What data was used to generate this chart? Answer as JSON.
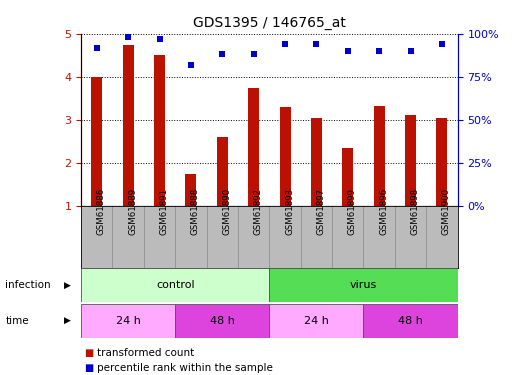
{
  "title": "GDS1395 / 146765_at",
  "samples": [
    "GSM61886",
    "GSM61889",
    "GSM61891",
    "GSM61888",
    "GSM61890",
    "GSM61892",
    "GSM61893",
    "GSM61897",
    "GSM61899",
    "GSM61896",
    "GSM61898",
    "GSM61900"
  ],
  "transformed_count": [
    4.0,
    4.75,
    4.5,
    1.75,
    2.6,
    3.75,
    3.3,
    3.05,
    2.35,
    3.32,
    3.12,
    3.05
  ],
  "percentile_rank": [
    92,
    98,
    97,
    82,
    88,
    88,
    94,
    94,
    90,
    90,
    90,
    94
  ],
  "bar_color": "#bb1100",
  "dot_color": "#0000cc",
  "ylim_left": [
    1,
    5
  ],
  "ylim_right": [
    0,
    100
  ],
  "yticks_left": [
    1,
    2,
    3,
    4,
    5
  ],
  "yticks_right": [
    0,
    25,
    50,
    75,
    100
  ],
  "infection_groups": [
    {
      "label": "control",
      "start": 0,
      "end": 6,
      "color": "#ccffcc"
    },
    {
      "label": "virus",
      "start": 6,
      "end": 12,
      "color": "#55dd55"
    }
  ],
  "time_groups": [
    {
      "label": "24 h",
      "start": 0,
      "end": 3,
      "color": "#ffaaff"
    },
    {
      "label": "48 h",
      "start": 3,
      "end": 6,
      "color": "#dd44dd"
    },
    {
      "label": "24 h",
      "start": 6,
      "end": 9,
      "color": "#ffaaff"
    },
    {
      "label": "48 h",
      "start": 9,
      "end": 12,
      "color": "#dd44dd"
    }
  ],
  "legend_items": [
    {
      "label": "transformed count",
      "color": "#bb1100"
    },
    {
      "label": "percentile rank within the sample",
      "color": "#0000cc"
    }
  ],
  "infection_label": "infection",
  "time_label": "time",
  "background_color": "#ffffff",
  "sample_area_color": "#bbbbbb"
}
